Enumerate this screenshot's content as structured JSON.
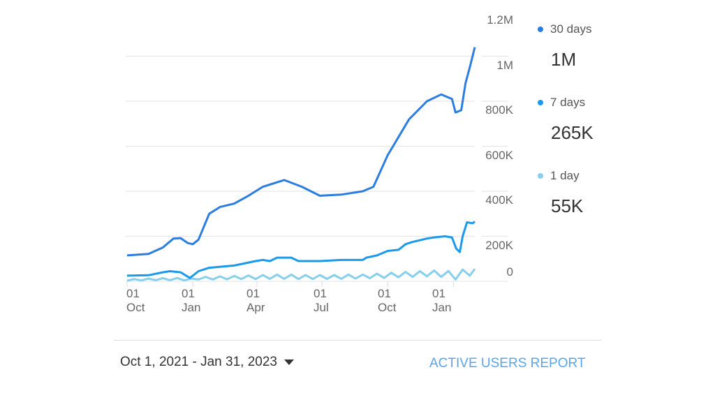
{
  "chart_data": {
    "type": "line",
    "title": "",
    "xlabel": "",
    "ylabel": "",
    "x_unit": "days since Oct 1, 2021",
    "xlim": [
      0,
      487
    ],
    "ylim": [
      0,
      1200000
    ],
    "y_ticks": [
      0,
      200000,
      400000,
      600000,
      800000,
      1000000,
      1200000
    ],
    "y_tick_labels": [
      "0",
      "200K",
      "400K",
      "600K",
      "800K",
      "1M",
      "1.2M"
    ],
    "x_ticks": [
      0,
      92,
      182,
      273,
      365,
      457
    ],
    "x_tick_labels": [
      [
        "01",
        "Oct"
      ],
      [
        "01",
        "Jan"
      ],
      [
        "01",
        "Apr"
      ],
      [
        "01",
        "Jul"
      ],
      [
        "01",
        "Oct"
      ],
      [
        "01",
        "Jan"
      ]
    ],
    "grid": true,
    "legend_position": "right",
    "series": [
      {
        "name": "30 days",
        "summary": "1M",
        "color": "#2b7de0",
        "points": [
          [
            0,
            115
          ],
          [
            30,
            122
          ],
          [
            50,
            150
          ],
          [
            65,
            190
          ],
          [
            75,
            192
          ],
          [
            85,
            170
          ],
          [
            92,
            165
          ],
          [
            100,
            185
          ],
          [
            115,
            300
          ],
          [
            130,
            330
          ],
          [
            150,
            345
          ],
          [
            170,
            380
          ],
          [
            190,
            420
          ],
          [
            220,
            450
          ],
          [
            245,
            420
          ],
          [
            270,
            380
          ],
          [
            300,
            385
          ],
          [
            330,
            400
          ],
          [
            345,
            420
          ],
          [
            365,
            560
          ],
          [
            395,
            720
          ],
          [
            420,
            800
          ],
          [
            440,
            830
          ],
          [
            455,
            810
          ],
          [
            460,
            750
          ],
          [
            468,
            760
          ],
          [
            474,
            880
          ],
          [
            480,
            950
          ],
          [
            487,
            1040
          ]
        ]
      },
      {
        "name": "7 days",
        "summary": "265K",
        "color": "#1a9ae8",
        "points": [
          [
            0,
            25
          ],
          [
            30,
            27
          ],
          [
            50,
            40
          ],
          [
            60,
            45
          ],
          [
            75,
            40
          ],
          [
            88,
            15
          ],
          [
            100,
            45
          ],
          [
            115,
            60
          ],
          [
            150,
            70
          ],
          [
            180,
            90
          ],
          [
            190,
            95
          ],
          [
            200,
            90
          ],
          [
            210,
            105
          ],
          [
            230,
            105
          ],
          [
            240,
            90
          ],
          [
            270,
            90
          ],
          [
            300,
            95
          ],
          [
            330,
            95
          ],
          [
            335,
            105
          ],
          [
            350,
            115
          ],
          [
            365,
            135
          ],
          [
            380,
            140
          ],
          [
            390,
            165
          ],
          [
            400,
            175
          ],
          [
            420,
            190
          ],
          [
            430,
            195
          ],
          [
            445,
            200
          ],
          [
            455,
            195
          ],
          [
            461,
            145
          ],
          [
            466,
            130
          ],
          [
            470,
            200
          ],
          [
            476,
            262
          ],
          [
            484,
            258
          ],
          [
            487,
            265
          ]
        ]
      },
      {
        "name": "1 day",
        "summary": "55K",
        "color": "#86d0ee",
        "points": [
          [
            0,
            3
          ],
          [
            10,
            10
          ],
          [
            20,
            4
          ],
          [
            30,
            12
          ],
          [
            40,
            5
          ],
          [
            50,
            14
          ],
          [
            60,
            5
          ],
          [
            70,
            15
          ],
          [
            80,
            4
          ],
          [
            90,
            12
          ],
          [
            100,
            8
          ],
          [
            110,
            20
          ],
          [
            120,
            8
          ],
          [
            130,
            22
          ],
          [
            140,
            9
          ],
          [
            150,
            24
          ],
          [
            160,
            10
          ],
          [
            170,
            26
          ],
          [
            180,
            10
          ],
          [
            190,
            28
          ],
          [
            200,
            11
          ],
          [
            210,
            30
          ],
          [
            220,
            11
          ],
          [
            230,
            30
          ],
          [
            240,
            10
          ],
          [
            250,
            28
          ],
          [
            260,
            10
          ],
          [
            270,
            28
          ],
          [
            280,
            11
          ],
          [
            290,
            28
          ],
          [
            300,
            11
          ],
          [
            310,
            30
          ],
          [
            320,
            12
          ],
          [
            330,
            30
          ],
          [
            340,
            14
          ],
          [
            350,
            34
          ],
          [
            360,
            15
          ],
          [
            370,
            38
          ],
          [
            380,
            18
          ],
          [
            390,
            42
          ],
          [
            400,
            20
          ],
          [
            410,
            45
          ],
          [
            420,
            22
          ],
          [
            430,
            48
          ],
          [
            440,
            20
          ],
          [
            450,
            46
          ],
          [
            460,
            8
          ],
          [
            470,
            52
          ],
          [
            480,
            25
          ],
          [
            487,
            55
          ]
        ]
      }
    ],
    "values_unit": "thousands of users"
  },
  "footer": {
    "date_range": "Oct 1, 2021 - Jan 31, 2023",
    "report_link": "ACTIVE USERS REPORT"
  }
}
